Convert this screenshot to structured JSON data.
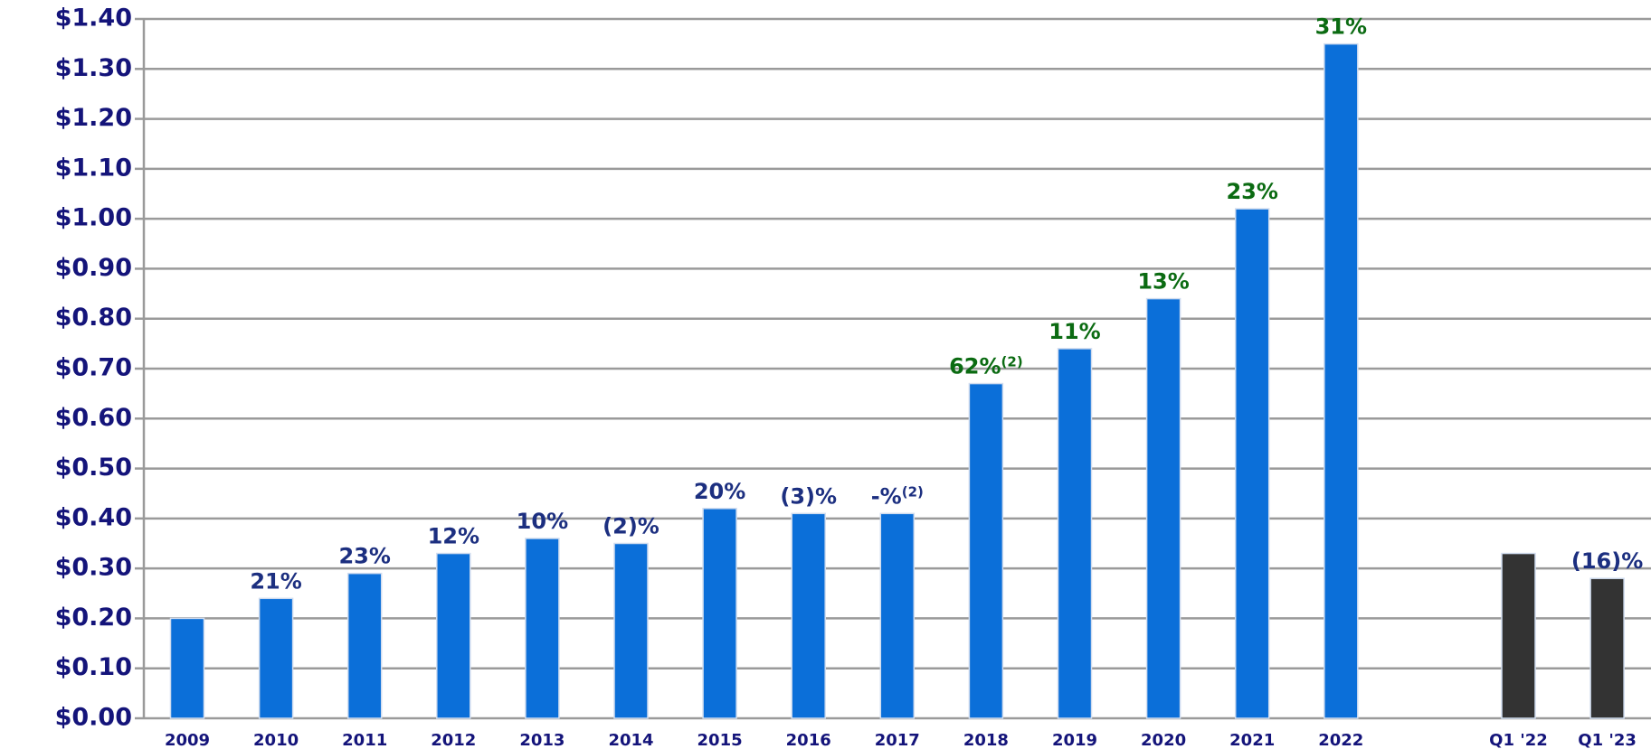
{
  "chart_data": {
    "type": "bar",
    "categories": [
      "2009",
      "2010",
      "2011",
      "2012",
      "2013",
      "2014",
      "2015",
      "2016",
      "2017",
      "2018",
      "2019",
      "2020",
      "2021",
      "2022",
      null,
      "Q1 '22",
      "Q1 '23"
    ],
    "values": [
      0.2,
      0.24,
      0.29,
      0.33,
      0.36,
      0.35,
      0.42,
      0.41,
      0.41,
      0.67,
      0.74,
      0.84,
      1.02,
      1.35,
      null,
      0.33,
      0.28
    ],
    "colors": [
      "#0b6fd9",
      "#0b6fd9",
      "#0b6fd9",
      "#0b6fd9",
      "#0b6fd9",
      "#0b6fd9",
      "#0b6fd9",
      "#0b6fd9",
      "#0b6fd9",
      "#0b6fd9",
      "#0b6fd9",
      "#0b6fd9",
      "#0b6fd9",
      "#0b6fd9",
      null,
      "#333333",
      "#333333"
    ],
    "growth_labels": [
      null,
      "21%",
      "23%",
      "12%",
      "10%",
      "(2)%",
      "20%",
      "(3)%",
      "-%",
      "62%",
      "11%",
      "13%",
      "23%",
      "31%",
      null,
      null,
      "(16)%"
    ],
    "growth_label_notes": [
      null,
      null,
      null,
      null,
      null,
      null,
      null,
      null,
      "(2)",
      "(2)",
      null,
      null,
      null,
      null,
      null,
      null,
      null
    ],
    "growth_label_colors": [
      null,
      "#1c2f80",
      "#1c2f80",
      "#1c2f80",
      "#1c2f80",
      "#1c2f80",
      "#1c2f80",
      "#1c2f80",
      "#1c2f80",
      "#0b6b12",
      "#0b6b12",
      "#0b6b12",
      "#0b6b12",
      "#0b6b12",
      null,
      null,
      "#1c2f80"
    ],
    "ylim": [
      0,
      1.4
    ],
    "yticks": [
      {
        "value": 0,
        "label": "$0.00"
      },
      {
        "value": 0.1,
        "label": "$0.10"
      },
      {
        "value": 0.2,
        "label": "$0.20"
      },
      {
        "value": 0.3,
        "label": "$0.30"
      },
      {
        "value": 0.4,
        "label": "$0.40"
      },
      {
        "value": 0.5,
        "label": "$0.50"
      },
      {
        "value": 0.6,
        "label": "$0.60"
      },
      {
        "value": 0.7,
        "label": "$0.70"
      },
      {
        "value": 0.8,
        "label": "$0.80"
      },
      {
        "value": 0.9,
        "label": "$0.90"
      },
      {
        "value": 1.0,
        "label": "$1.00"
      },
      {
        "value": 1.1,
        "label": "$1.10"
      },
      {
        "value": 1.2,
        "label": "$1.20"
      },
      {
        "value": 1.3,
        "label": "$1.30"
      },
      {
        "value": 1.4,
        "label": "$1.40"
      }
    ],
    "grid": true
  }
}
